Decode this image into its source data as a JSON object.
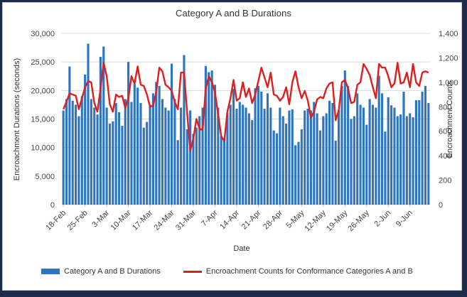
{
  "chart_data": {
    "type": "bar",
    "title": "Category A and B Durations",
    "xlabel": "Date",
    "ylabel": "Encroachment Durations (seconds)",
    "y2label": "Encroachment Counts",
    "ylim": [
      0,
      30000
    ],
    "y2lim": [
      0,
      1400
    ],
    "yticks": [
      "0",
      "5,000",
      "10,000",
      "15,000",
      "20,000",
      "25,000",
      "30,000"
    ],
    "y2ticks": [
      "0",
      "200",
      "400",
      "600",
      "800",
      "1,000",
      "1,200",
      "1,400"
    ],
    "xtick_labels": [
      "18-Feb",
      "25-Feb",
      "3-Mar",
      "10-Mar",
      "17-Mar",
      "24-Mar",
      "31-Mar",
      "7-Apr",
      "14-Apr",
      "21-Apr",
      "28-Apr",
      "5-May",
      "12-May",
      "19-May",
      "26-May",
      "2-Jun",
      "9-Jun"
    ],
    "grid": true,
    "legend_position": "bottom",
    "series": [
      {
        "name": "Category A and B Durations",
        "type": "bar",
        "axis": "left",
        "color": "#2e75c0",
        "values": [
          16500,
          18500,
          24200,
          18200,
          17500,
          15500,
          19000,
          22800,
          28200,
          18500,
          17000,
          15800,
          25900,
          27700,
          17000,
          14200,
          14600,
          17800,
          16200,
          13800,
          18500,
          25000,
          18000,
          21200,
          20500,
          17800,
          13500,
          14500,
          17500,
          19500,
          21500,
          20800,
          18500,
          17000,
          16500,
          24700,
          18500,
          11300,
          17000,
          26200,
          13200,
          16500,
          12400,
          13500,
          15500,
          17000,
          24300,
          23200,
          23500,
          21000,
          17000,
          12000,
          11500,
          16000,
          17500,
          20300,
          16800,
          18000,
          17500,
          17000,
          16000,
          14800,
          20400,
          20800,
          19800,
          16800,
          19500,
          17000,
          13000,
          12500,
          17000,
          15500,
          14200,
          16500,
          16700,
          10400,
          11000,
          13200,
          16500,
          16800,
          16500,
          18000,
          16000,
          13000,
          15500,
          16000,
          18200,
          17800,
          11200,
          16500,
          20800,
          23500,
          20800,
          15000,
          15500,
          19500,
          17500,
          17000,
          14000,
          18500,
          17500,
          17000,
          22600,
          19500,
          12800,
          18800,
          17400,
          17000,
          15500,
          15800,
          19800,
          15500,
          16000,
          15300,
          18300,
          18300,
          19800,
          20800,
          17800
        ]
      },
      {
        "name": "Encroachment Counts for Conformance Categories A and B",
        "type": "line",
        "axis": "right",
        "color": "#e01e1e",
        "values": [
          780,
          840,
          910,
          900,
          890,
          780,
          870,
          960,
          1010,
          1000,
          830,
          760,
          950,
          1160,
          1050,
          820,
          760,
          900,
          880,
          890,
          790,
          870,
          1050,
          990,
          1130,
          980,
          970,
          900,
          800,
          810,
          920,
          1120,
          1090,
          980,
          960,
          930,
          840,
          780,
          1080,
          1080,
          750,
          440,
          540,
          700,
          620,
          610,
          950,
          1050,
          1000,
          920,
          740,
          560,
          520,
          760,
          870,
          1020,
          850,
          870,
          1000,
          880,
          950,
          830,
          900,
          1010,
          1120,
          1040,
          960,
          1080,
          900,
          890,
          850,
          880,
          960,
          820,
          1000,
          1090,
          960,
          870,
          930,
          850,
          710,
          760,
          860,
          880,
          870,
          950,
          990,
          1000,
          690,
          770,
          1000,
          1020,
          950,
          830,
          840,
          980,
          1000,
          1150,
          1110,
          1060,
          960,
          870,
          1150,
          1120,
          1120,
          1050,
          960,
          990,
          1160,
          990,
          1000,
          1080,
          960,
          1150,
          1000,
          970,
          1080,
          1090,
          1080
        ]
      }
    ]
  },
  "legend": {
    "bar_label": "Category A and B Durations",
    "line_label": "Encroachment Counts for Conformance Categories A and B"
  }
}
